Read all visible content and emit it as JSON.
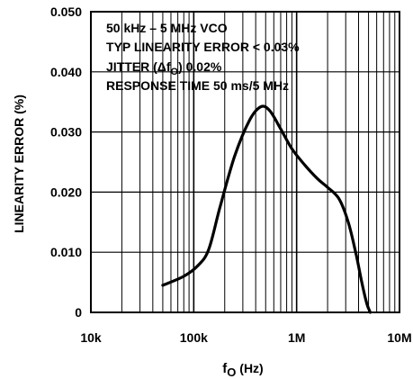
{
  "chart_data": {
    "type": "line",
    "title": "",
    "xlabel_main": "f",
    "xlabel_sub": "O",
    "xlabel_unit": " (Hz)",
    "ylabel": "LINEARITY ERROR (%)",
    "x_scale": "log",
    "xlim": [
      10000,
      10000000
    ],
    "ylim": [
      0,
      0.05
    ],
    "grid": true,
    "x_ticks": [
      {
        "value": 10000,
        "label": "10k"
      },
      {
        "value": 100000,
        "label": "100k"
      },
      {
        "value": 1000000,
        "label": "1M"
      },
      {
        "value": 10000000,
        "label": "10M"
      }
    ],
    "y_ticks": [
      {
        "value": 0,
        "label": "0"
      },
      {
        "value": 0.01,
        "label": "0.010"
      },
      {
        "value": 0.02,
        "label": "0.020"
      },
      {
        "value": 0.03,
        "label": "0.030"
      },
      {
        "value": 0.04,
        "label": "0.040"
      },
      {
        "value": 0.05,
        "label": "0.050"
      }
    ],
    "annotations": [
      "50 kHz – 5 MHz VCO",
      "TYP LINEARITY ERROR < 0.03%",
      "JITTER (Δf",
      ") 0.02%",
      "RESPONSE TIME 50 ms/5 MHz"
    ],
    "annotation_subscript": "O",
    "series": [
      {
        "color": "#000000",
        "x": [
          50000,
          80000,
          110000,
          140000,
          180000,
          250000,
          350000,
          450000,
          550000,
          700000,
          900000,
          1200000,
          1600000,
          2000000,
          2600000,
          3200000,
          3800000,
          4300000,
          4800000,
          5200000
        ],
        "y": [
          0.0045,
          0.006,
          0.0078,
          0.0105,
          0.0175,
          0.026,
          0.032,
          0.0342,
          0.0335,
          0.0305,
          0.0272,
          0.0245,
          0.0222,
          0.0208,
          0.0188,
          0.0148,
          0.0095,
          0.005,
          0.0015,
          0.0
        ]
      }
    ]
  }
}
